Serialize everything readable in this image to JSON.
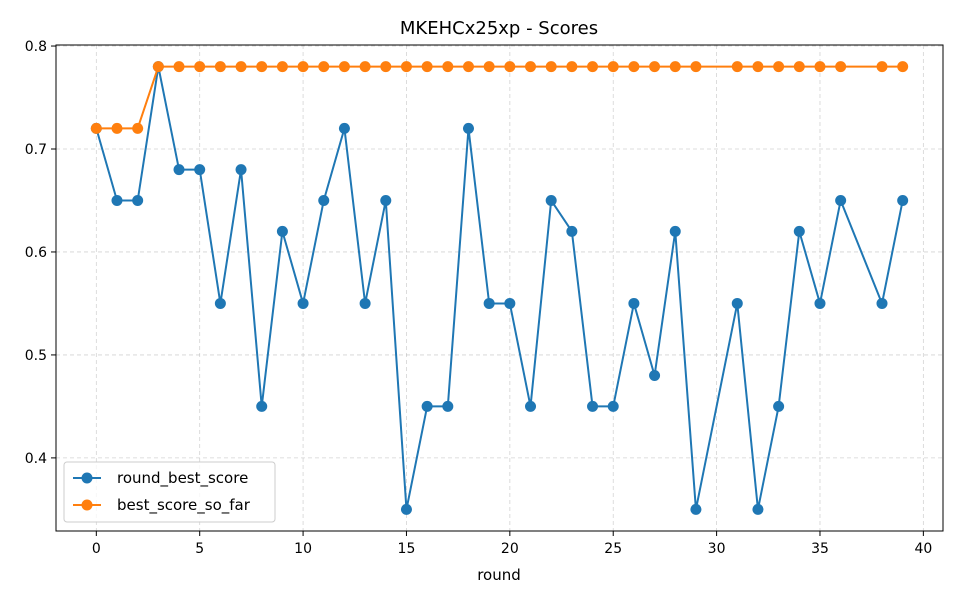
{
  "chart_data": {
    "type": "line",
    "title": "MKEHCx25xp - Scores",
    "xlabel": "round",
    "ylabel": "",
    "xlim": [
      -1.95,
      40.95
    ],
    "ylim": [
      0.329,
      0.801
    ],
    "xticks": [
      0,
      5,
      10,
      15,
      20,
      25,
      30,
      35,
      40
    ],
    "yticks": [
      0.4,
      0.5,
      0.6,
      0.7,
      0.8
    ],
    "grid": true,
    "legend_position": "lower-left",
    "series": [
      {
        "name": "round_best_score",
        "color": "#1f77b4",
        "x": [
          0,
          1,
          2,
          3,
          4,
          5,
          6,
          7,
          8,
          9,
          10,
          11,
          12,
          13,
          14,
          15,
          16,
          17,
          18,
          19,
          20,
          21,
          22,
          23,
          24,
          25,
          26,
          27,
          28,
          29,
          31,
          32,
          33,
          34,
          35,
          36,
          38,
          39
        ],
        "y": [
          0.72,
          0.65,
          0.65,
          0.78,
          0.68,
          0.68,
          0.55,
          0.68,
          0.45,
          0.62,
          0.55,
          0.65,
          0.72,
          0.55,
          0.65,
          0.35,
          0.45,
          0.45,
          0.72,
          0.55,
          0.55,
          0.45,
          0.65,
          0.62,
          0.45,
          0.45,
          0.55,
          0.48,
          0.62,
          0.35,
          0.55,
          0.35,
          0.45,
          0.62,
          0.55,
          0.65,
          0.55,
          0.65
        ]
      },
      {
        "name": "best_score_so_far",
        "color": "#ff7f0e",
        "x": [
          0,
          1,
          2,
          3,
          4,
          5,
          6,
          7,
          8,
          9,
          10,
          11,
          12,
          13,
          14,
          15,
          16,
          17,
          18,
          19,
          20,
          21,
          22,
          23,
          24,
          25,
          26,
          27,
          28,
          29,
          31,
          32,
          33,
          34,
          35,
          36,
          38,
          39
        ],
        "y": [
          0.72,
          0.72,
          0.72,
          0.78,
          0.78,
          0.78,
          0.78,
          0.78,
          0.78,
          0.78,
          0.78,
          0.78,
          0.78,
          0.78,
          0.78,
          0.78,
          0.78,
          0.78,
          0.78,
          0.78,
          0.78,
          0.78,
          0.78,
          0.78,
          0.78,
          0.78,
          0.78,
          0.78,
          0.78,
          0.78,
          0.78,
          0.78,
          0.78,
          0.78,
          0.78,
          0.78,
          0.78,
          0.78
        ]
      }
    ]
  }
}
